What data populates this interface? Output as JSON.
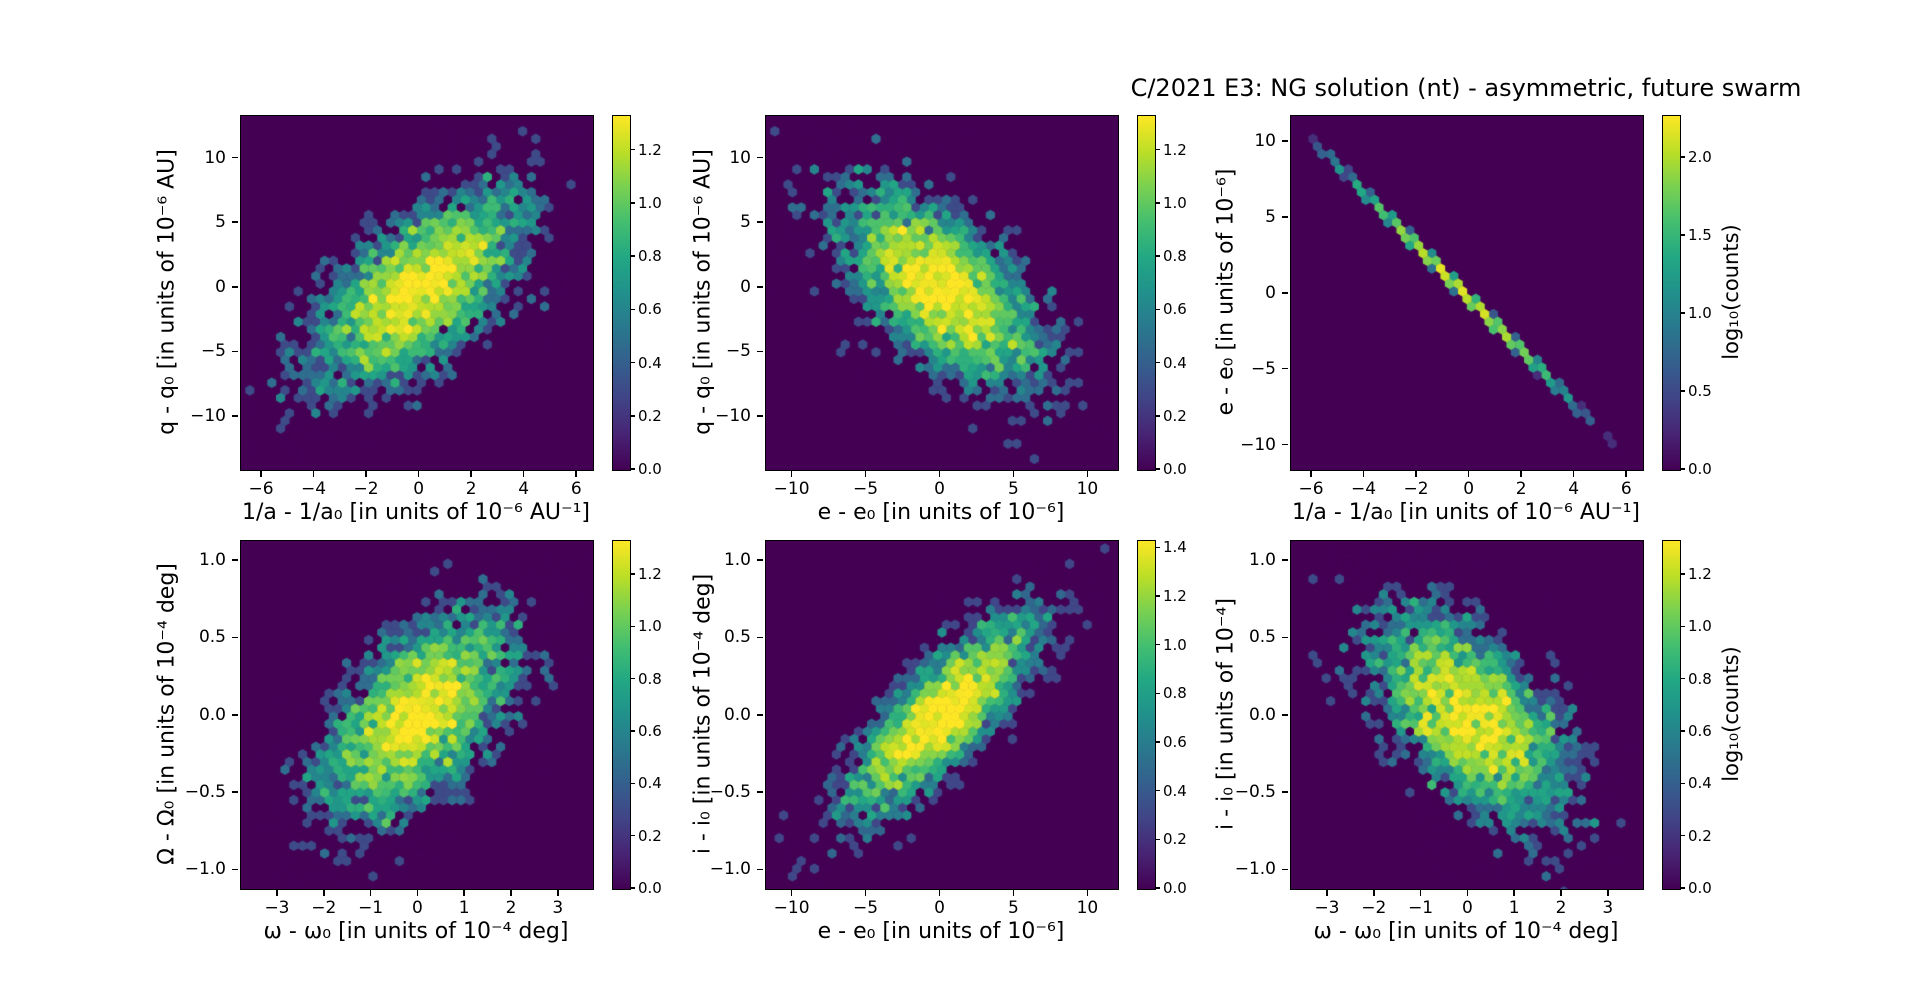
{
  "title": "C/2021 E3: NG solution (nt) - asymmetric, future swarm",
  "colors": {
    "background": "#ffffff",
    "colormap": "viridis",
    "colormap_min": "#440154",
    "colormap_max": "#fde725",
    "text": "#000000"
  },
  "chart_data": [
    {
      "panel": "top-left",
      "type": "heatmap",
      "plot_kind": "hexbin-density",
      "xlabel": "1/a - 1/a₀ [in units of 10⁻⁶ AU⁻¹]",
      "ylabel": "q - q₀ [in units of 10⁻⁶ AU]",
      "xlim": [
        -6.8,
        6.6
      ],
      "ylim": [
        -14.1,
        13.3
      ],
      "xticks": [
        -6,
        -4,
        -2,
        0,
        2,
        4,
        6
      ],
      "xtick_labels": [
        "−6",
        "−4",
        "−2",
        "0",
        "2",
        "4",
        "6"
      ],
      "yticks": [
        10,
        5,
        0,
        -5,
        -10
      ],
      "ytick_labels": [
        "10",
        "5",
        "0",
        "−5",
        "−10"
      ],
      "colorbar": {
        "vmin": 0.0,
        "vmax": 1.33,
        "ticks": [
          0.0,
          0.2,
          0.4,
          0.6,
          0.8,
          1.0,
          1.2
        ],
        "tick_labels": [
          "0.0",
          "0.2",
          "0.4",
          "0.6",
          "0.8",
          "1.0",
          "1.2"
        ],
        "label": ""
      },
      "density_model": {
        "kind": "gaussian",
        "mean": [
          0,
          0
        ],
        "sigma": [
          2.15,
          4.0
        ],
        "rho": 0.62,
        "n_points": 4500
      }
    },
    {
      "panel": "top-middle",
      "type": "heatmap",
      "plot_kind": "hexbin-density",
      "xlabel": "e - e₀ [in units of 10⁻⁶]",
      "ylabel": "q - q₀ [in units of 10⁻⁶ AU]",
      "xlim": [
        -11.8,
        12.0
      ],
      "ylim": [
        -14.1,
        13.3
      ],
      "xticks": [
        -10,
        -5,
        0,
        5,
        10
      ],
      "xtick_labels": [
        "−10",
        "−5",
        "0",
        "5",
        "10"
      ],
      "yticks": [
        10,
        5,
        0,
        -5,
        -10
      ],
      "ytick_labels": [
        "10",
        "5",
        "0",
        "−5",
        "−10"
      ],
      "colorbar": {
        "vmin": 0.0,
        "vmax": 1.33,
        "ticks": [
          0.0,
          0.2,
          0.4,
          0.6,
          0.8,
          1.0,
          1.2
        ],
        "tick_labels": [
          "0.0",
          "0.2",
          "0.4",
          "0.6",
          "0.8",
          "1.0",
          "1.2"
        ],
        "label": ""
      },
      "density_model": {
        "kind": "gaussian",
        "mean": [
          0,
          0
        ],
        "sigma": [
          3.7,
          4.1
        ],
        "rho": -0.62,
        "n_points": 4500
      }
    },
    {
      "panel": "top-right",
      "type": "heatmap",
      "plot_kind": "hexbin-density",
      "xlabel": "1/a - 1/a₀ [in units of 10⁻⁶ AU⁻¹]",
      "ylabel": "e - e₀ [in units of 10⁻⁶]",
      "xlim": [
        -6.8,
        6.6
      ],
      "ylim": [
        -11.6,
        11.7
      ],
      "xticks": [
        -6,
        -4,
        -2,
        0,
        2,
        4,
        6
      ],
      "xtick_labels": [
        "−6",
        "−4",
        "−2",
        "0",
        "2",
        "4",
        "6"
      ],
      "yticks": [
        10,
        5,
        0,
        -5,
        -10
      ],
      "ytick_labels": [
        "10",
        "5",
        "0",
        "−5",
        "−10"
      ],
      "colorbar": {
        "vmin": 0.0,
        "vmax": 2.27,
        "ticks": [
          0.0,
          0.5,
          1.0,
          1.5,
          2.0
        ],
        "tick_labels": [
          "0.0",
          "0.5",
          "1.0",
          "1.5",
          "2.0"
        ],
        "label": "log₁₀(counts)"
      },
      "density_model": {
        "kind": "line",
        "mean_x": -0.45,
        "sigma_x": 1.95,
        "slope": -1.74,
        "intercept": -0.34,
        "jitter": 0.05,
        "n_points": 2600
      }
    },
    {
      "panel": "bottom-left",
      "type": "heatmap",
      "plot_kind": "hexbin-density",
      "xlabel": "ω - ω₀ [in units of 10⁻⁴ deg]",
      "ylabel": "Ω - Ω₀ [in units of 10⁻⁴ deg]",
      "xlim": [
        -3.79,
        3.73
      ],
      "ylim": [
        -1.12,
        1.13
      ],
      "xticks": [
        -3,
        -2,
        -1,
        0,
        1,
        2,
        3
      ],
      "xtick_labels": [
        "−3",
        "−2",
        "−1",
        "0",
        "1",
        "2",
        "3"
      ],
      "yticks": [
        1.0,
        0.5,
        0.0,
        -0.5,
        -1.0
      ],
      "ytick_labels": [
        "1.0",
        "0.5",
        "0.0",
        "−0.5",
        "−1.0"
      ],
      "colorbar": {
        "vmin": 0.0,
        "vmax": 1.33,
        "ticks": [
          0.0,
          0.2,
          0.4,
          0.6,
          0.8,
          1.0,
          1.2
        ],
        "tick_labels": [
          "0.0",
          "0.2",
          "0.4",
          "0.6",
          "0.8",
          "1.0",
          "1.2"
        ],
        "label": ""
      },
      "density_model": {
        "kind": "gaussian",
        "mean": [
          0,
          0
        ],
        "sigma": [
          1.08,
          0.36
        ],
        "rho": 0.55,
        "n_points": 4500
      }
    },
    {
      "panel": "bottom-middle",
      "type": "heatmap",
      "plot_kind": "hexbin-density",
      "xlabel": "e - e₀ [in units of 10⁻⁶]",
      "ylabel": "i - i₀ [in units of 10⁻⁴ deg]",
      "xlim": [
        -11.8,
        12.0
      ],
      "ylim": [
        -1.12,
        1.13
      ],
      "xticks": [
        -10,
        -5,
        0,
        5,
        10
      ],
      "xtick_labels": [
        "−10",
        "−5",
        "0",
        "5",
        "10"
      ],
      "yticks": [
        1.0,
        0.5,
        0.0,
        -0.5,
        -1.0
      ],
      "ytick_labels": [
        "1.0",
        "0.5",
        "0.0",
        "−0.5",
        "−1.0"
      ],
      "colorbar": {
        "vmin": 0.0,
        "vmax": 1.43,
        "ticks": [
          0.0,
          0.2,
          0.4,
          0.6,
          0.8,
          1.0,
          1.2,
          1.4
        ],
        "tick_labels": [
          "0.0",
          "0.2",
          "0.4",
          "0.6",
          "0.8",
          "1.0",
          "1.2",
          "1.4"
        ],
        "label": ""
      },
      "density_model": {
        "kind": "gaussian",
        "mean": [
          0,
          0
        ],
        "sigma": [
          3.4,
          0.34
        ],
        "rho": 0.8,
        "n_points": 4200
      }
    },
    {
      "panel": "bottom-right",
      "type": "heatmap",
      "plot_kind": "hexbin-density",
      "xlabel": "ω - ω₀ [in units of 10⁻⁴ deg]",
      "ylabel": "i - i₀ [in units of 10⁻⁴]",
      "xlim": [
        -3.79,
        3.73
      ],
      "ylim": [
        -1.12,
        1.13
      ],
      "xticks": [
        -3,
        -2,
        -1,
        0,
        1,
        2,
        3
      ],
      "xtick_labels": [
        "−3",
        "−2",
        "−1",
        "0",
        "1",
        "2",
        "3"
      ],
      "yticks": [
        1.0,
        0.5,
        0.0,
        -0.5,
        -1.0
      ],
      "ytick_labels": [
        "1.0",
        "0.5",
        "0.0",
        "−0.5",
        "−1.0"
      ],
      "colorbar": {
        "vmin": 0.0,
        "vmax": 1.33,
        "ticks": [
          0.0,
          0.2,
          0.4,
          0.6,
          0.8,
          1.0,
          1.2
        ],
        "tick_labels": [
          "0.0",
          "0.2",
          "0.4",
          "0.6",
          "0.8",
          "1.0",
          "1.2"
        ],
        "label": "log₁₀(counts)"
      },
      "density_model": {
        "kind": "gaussian",
        "mean": [
          0,
          0
        ],
        "sigma": [
          1.08,
          0.36
        ],
        "rho": -0.55,
        "n_points": 4500
      }
    }
  ]
}
